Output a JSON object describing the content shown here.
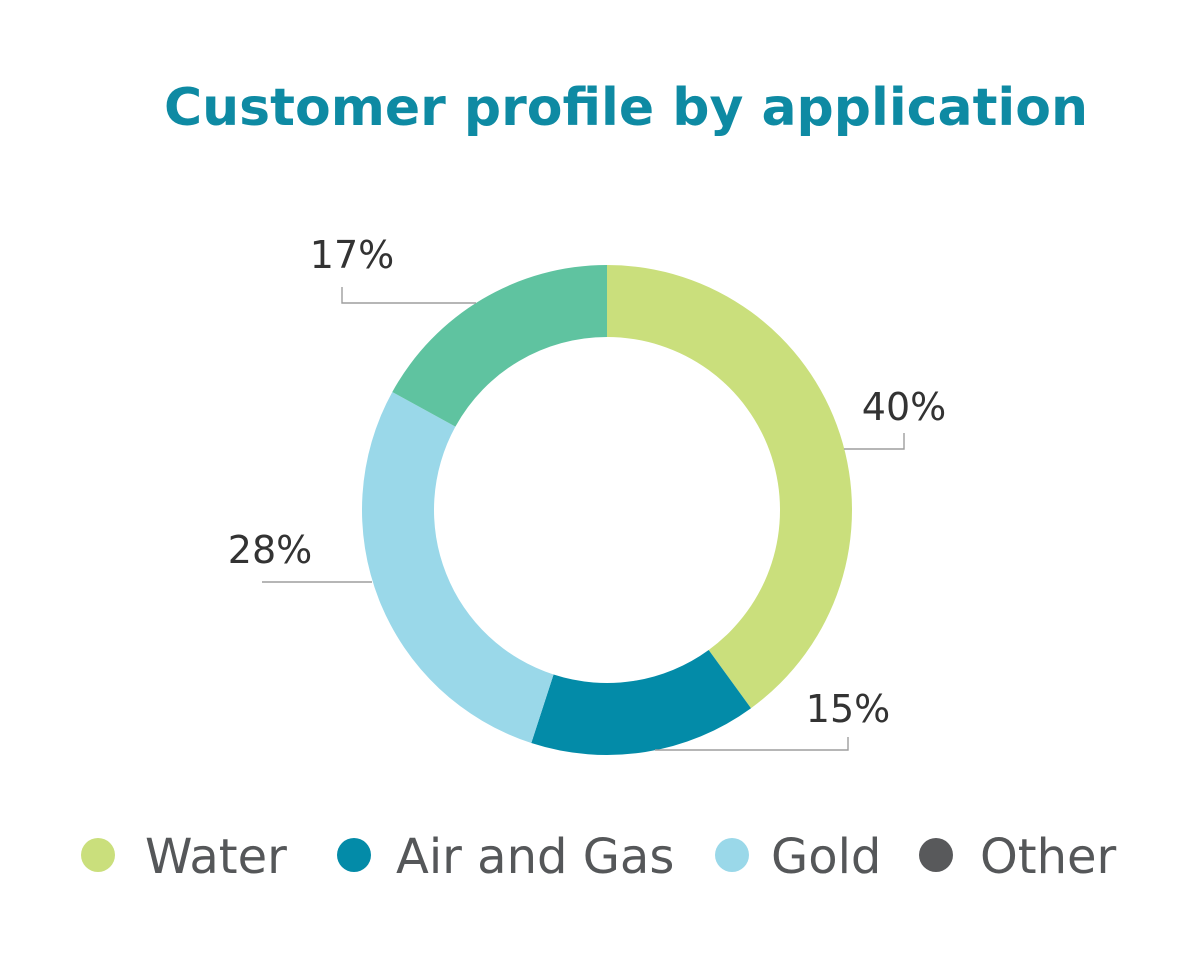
{
  "colors": {
    "title": "#0e8aa3",
    "leader_line": "#9e9e9e",
    "label_text": "#333333",
    "legend_text": "#555759"
  },
  "chart_data": {
    "type": "pie",
    "donut": true,
    "title": "Customer profile by application",
    "start_angle_deg": 0,
    "direction": "clockwise",
    "slices": [
      {
        "label": "40%",
        "value": 40,
        "color": "#cadf7c"
      },
      {
        "label": "15%",
        "value": 15,
        "color": "#038ba8"
      },
      {
        "label": "28%",
        "value": 28,
        "color": "#9ad8e9"
      },
      {
        "label": "17%",
        "value": 17,
        "color": "#5fc3a0"
      }
    ],
    "legend": {
      "placement": "bottom",
      "entries": [
        {
          "name": "Water",
          "color": "#cadf7c"
        },
        {
          "name": "Air and Gas",
          "color": "#038ba8"
        },
        {
          "name": "Gold",
          "color": "#9ad8e9"
        },
        {
          "name": "Other",
          "color": "#58595b"
        }
      ]
    }
  }
}
